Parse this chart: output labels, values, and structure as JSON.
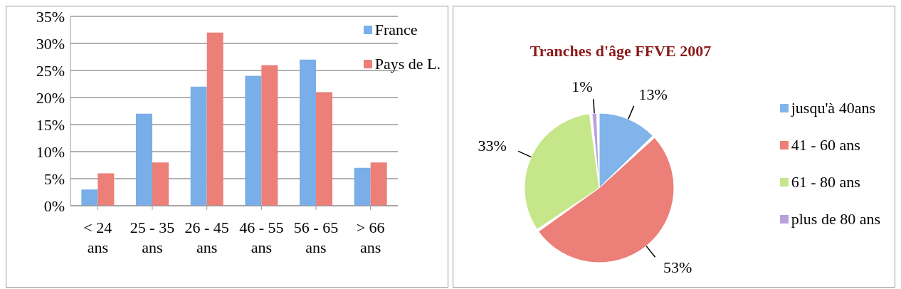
{
  "chart_data": [
    {
      "type": "bar",
      "categories": [
        "< 24 ans",
        "25 - 35 ans",
        "26 - 45 ans",
        "46 - 55 ans",
        "56 - 65 ans",
        "> 66 ans"
      ],
      "series": [
        {
          "name": "France",
          "color": "#7aaee8",
          "values": [
            3,
            17,
            22,
            24,
            27,
            7
          ]
        },
        {
          "name": "Pays de L.",
          "color": "#ec7f78",
          "values": [
            6,
            8,
            32,
            26,
            21,
            8
          ]
        }
      ],
      "ylim": [
        0,
        35
      ],
      "yticks": [
        {
          "value": 0,
          "label": "0%"
        },
        {
          "value": 5,
          "label": "5%"
        },
        {
          "value": 10,
          "label": "10%"
        },
        {
          "value": 15,
          "label": "15%"
        },
        {
          "value": 20,
          "label": "20%"
        },
        {
          "value": 25,
          "label": "25%"
        },
        {
          "value": 30,
          "label": "30%"
        },
        {
          "value": 35,
          "label": "35%"
        }
      ],
      "grid": "y",
      "legend": "top right"
    },
    {
      "type": "pie",
      "title": "Tranches d'âge FFVE 2007",
      "categories": [
        "jusqu'à 40ans",
        "41 - 60 ans",
        "61 - 80 ans",
        "plus de 80 ans"
      ],
      "values": [
        13,
        53,
        33,
        1
      ],
      "colors": [
        "#82b4ec",
        "#ec7f78",
        "#c6e68a",
        "#b9a0dc"
      ],
      "value_labels": [
        "13%",
        "53%",
        "33%",
        "1%"
      ],
      "legend": "right"
    }
  ]
}
